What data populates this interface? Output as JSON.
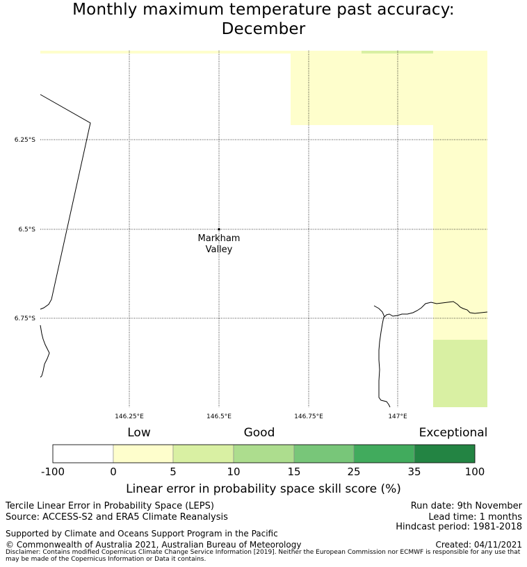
{
  "title_line1": "Monthly maximum temperature past accuracy:",
  "title_line2": "December",
  "map": {
    "lat_labels": [
      "6.25°S",
      "6.5°S",
      "6.75°S"
    ],
    "lon_labels": [
      "146.25°E",
      "146.5°E",
      "146.75°E",
      "147°E"
    ],
    "place": {
      "name_line1": "Markham",
      "name_line2": "Valley",
      "lat": "6.5°S",
      "lon": "146.5°E"
    }
  },
  "colorbar": {
    "section_labels": [
      "Low",
      "Good",
      "Exceptional"
    ],
    "ticks": [
      "-100",
      "0",
      "5",
      "10",
      "15",
      "25",
      "35",
      "100"
    ],
    "colors": [
      "#ffffff",
      "#fefecc",
      "#d9f0a3",
      "#addd8e",
      "#78c679",
      "#41ab5d",
      "#238443"
    ],
    "title": "Linear error in probability space skill score (%)"
  },
  "footer": {
    "left_line1": "Tercile Linear Error in Probability Space (LEPS)",
    "left_line2": "Source: ACCESS-S2 and ERA5 Climate Reanalysis",
    "support": "Supported by Climate and Oceans Support Program in the Pacific",
    "copyright": "© Commonwealth of Australia 2021, Australian Bureau of Meteorology",
    "run_date": "Run date: 9th November",
    "lead_time": "Lead time: 1 months",
    "hindcast": "Hindcast period: 1981-2018",
    "created": "Created: 04/11/2021",
    "disclaimer": "Disclaimer: Contains modified Copernicus Climate Change Service Information [2019]. Neither the European Commission nor ECMWF is responsible for any use that may be made of the Copernicus Information or Data it contains."
  }
}
